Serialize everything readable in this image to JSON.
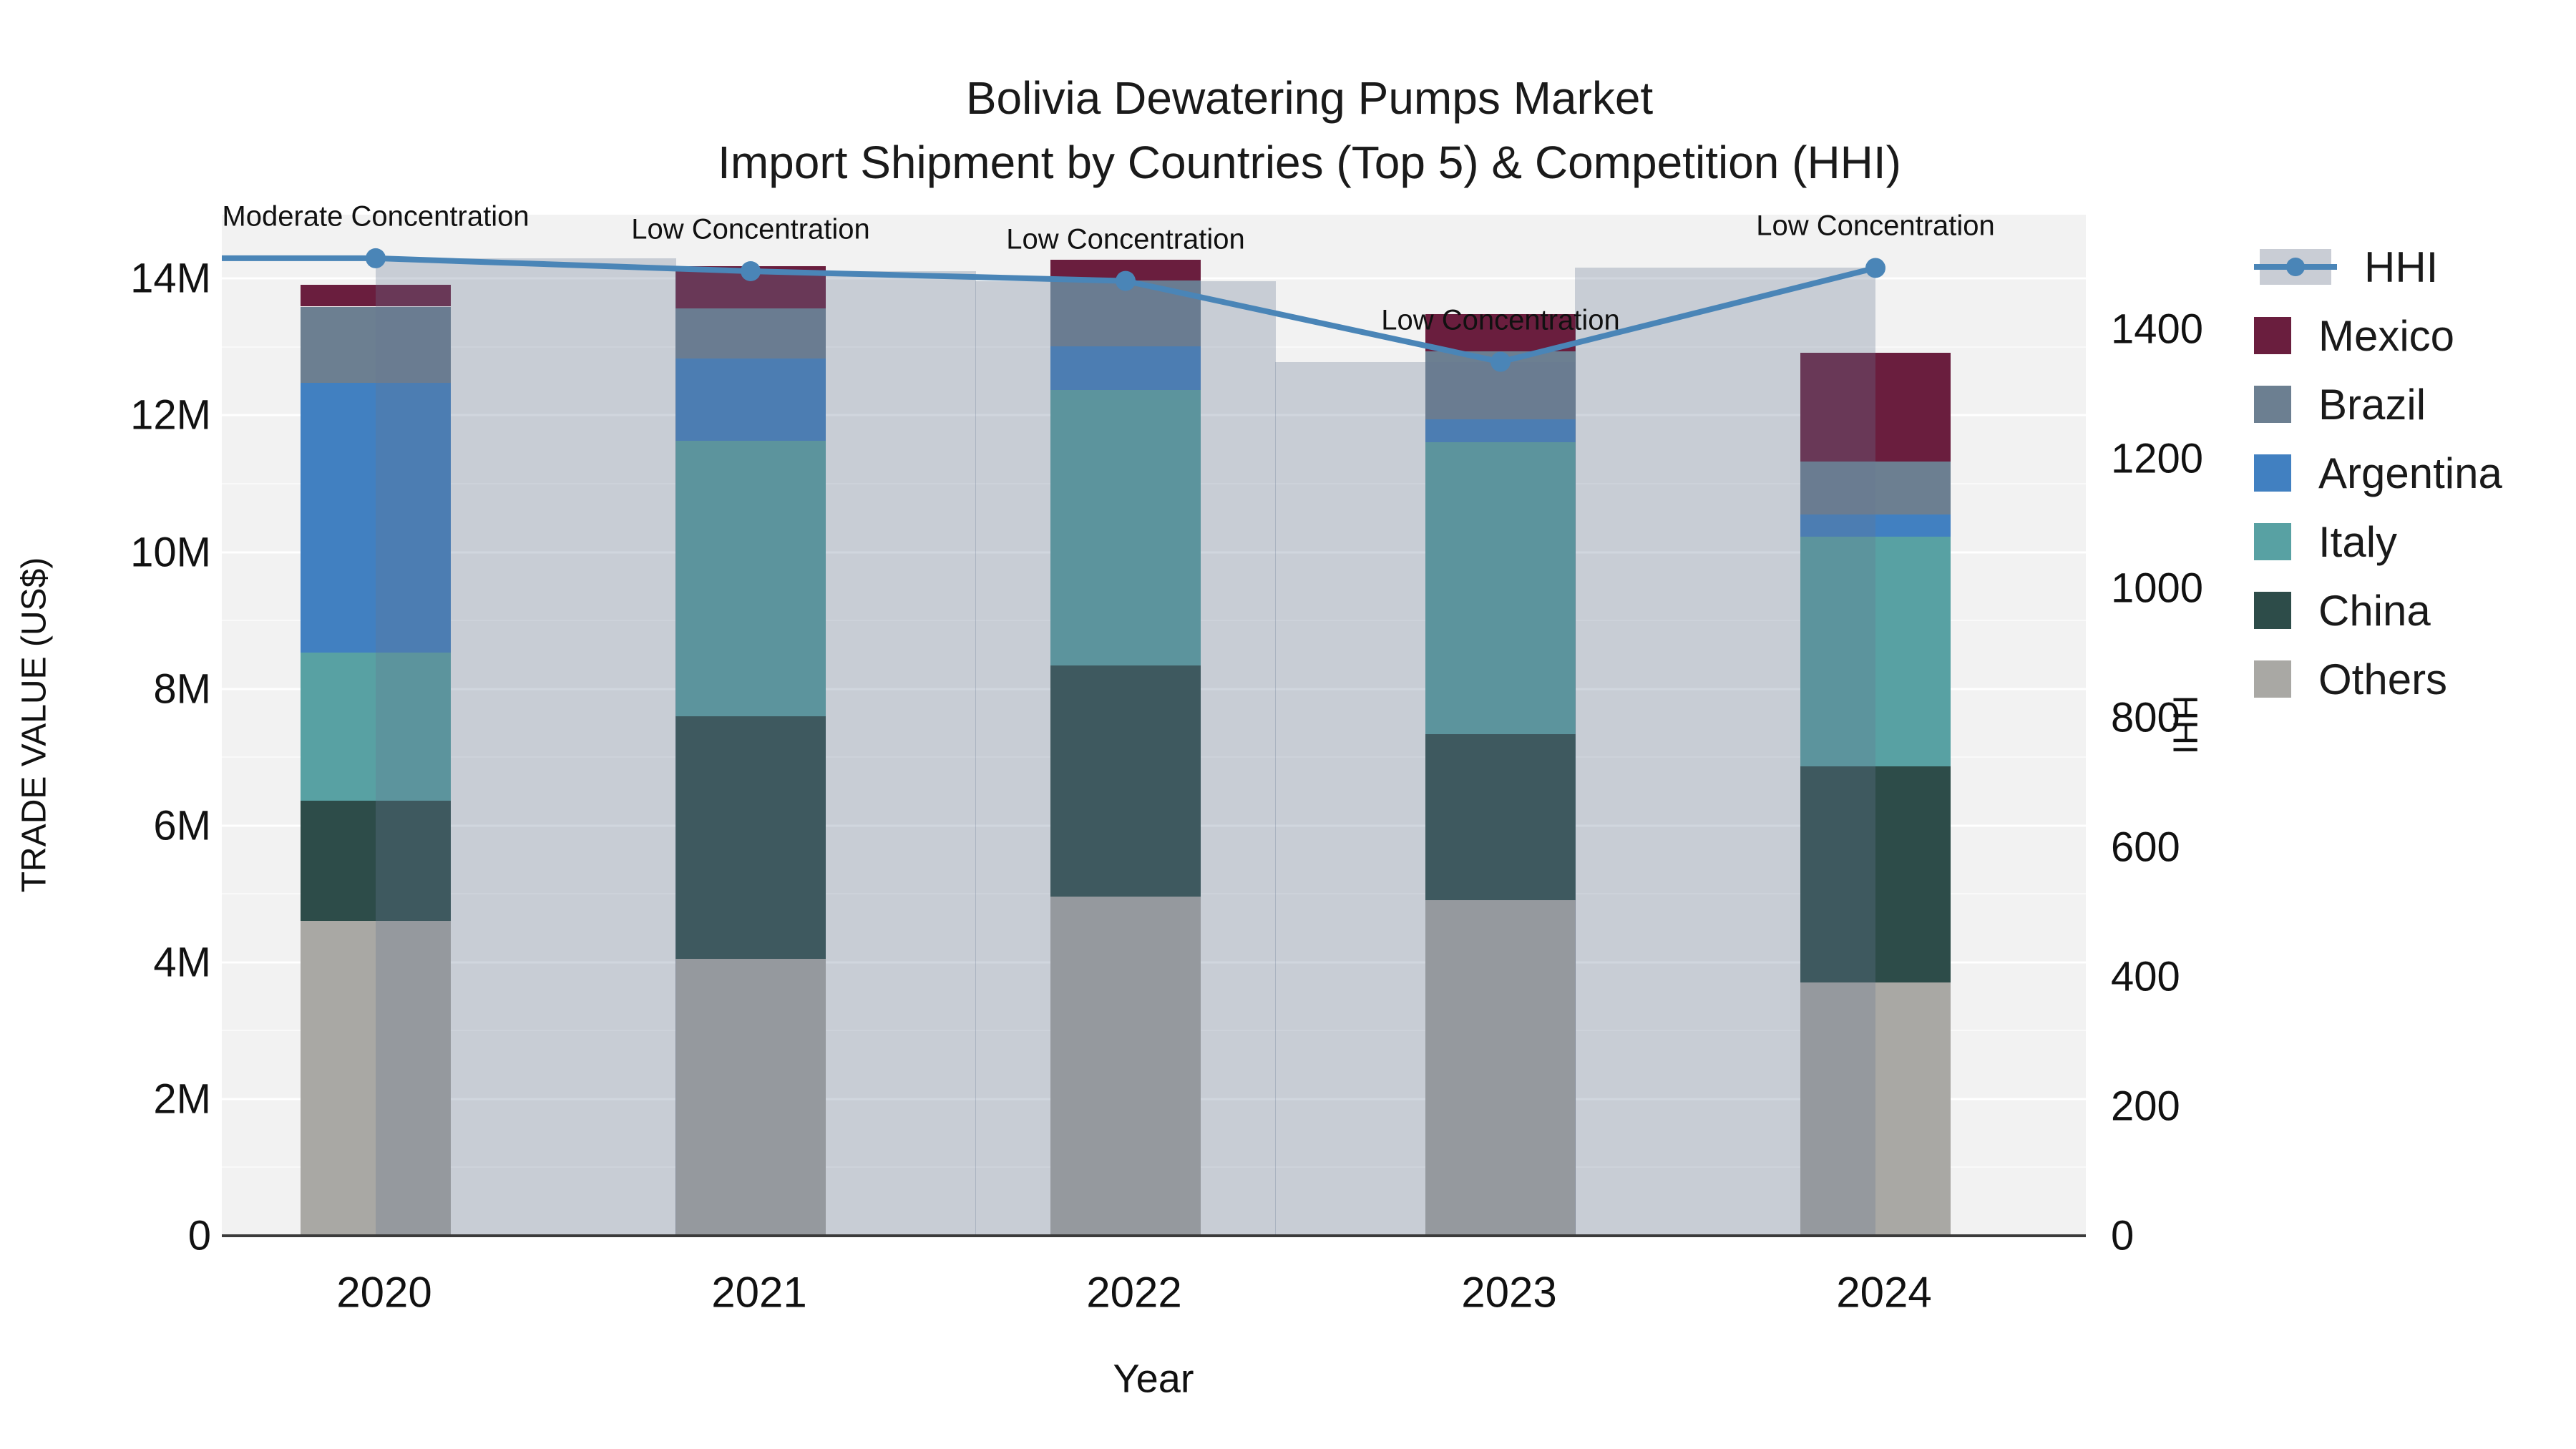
{
  "title": {
    "line1": "Bolivia Dewatering Pumps Market",
    "line2": "Import Shipment by Countries (Top 5) & Competition (HHI)"
  },
  "axes": {
    "y_left": {
      "title": "TRADE VALUE (US$)",
      "tick_labels": [
        "0",
        "2M",
        "4M",
        "6M",
        "8M",
        "10M",
        "12M",
        "14M"
      ],
      "tick_values_millions": [
        0,
        2,
        4,
        6,
        8,
        10,
        12,
        14
      ]
    },
    "y_right": {
      "title": "HHI",
      "tick_labels": [
        "0",
        "200",
        "400",
        "600",
        "800",
        "1000",
        "1200",
        "1400"
      ],
      "tick_values": [
        0,
        200,
        400,
        600,
        800,
        1000,
        1200,
        1400
      ]
    },
    "x": {
      "title": "Year",
      "tick_labels": [
        "2020",
        "2021",
        "2022",
        "2023",
        "2024"
      ]
    }
  },
  "legend": {
    "items": [
      {
        "label": "HHI",
        "kind": "line-marker",
        "color": "#4a85b7",
        "swatch_bg": "#c9cdd5"
      },
      {
        "label": "Mexico",
        "kind": "square",
        "color": "#6a1e3e"
      },
      {
        "label": "Brazil",
        "kind": "square",
        "color": "#6c7f91"
      },
      {
        "label": "Argentina",
        "kind": "square",
        "color": "#4180c1"
      },
      {
        "label": "Italy",
        "kind": "square",
        "color": "#58a1a3"
      },
      {
        "label": "China",
        "kind": "square",
        "color": "#2d4c49"
      },
      {
        "label": "Others",
        "kind": "square",
        "color": "#a9a8a4"
      }
    ]
  },
  "colors": {
    "figure_bg": "#ffffff",
    "plot_bg": "#f2f2f2",
    "gridline": "#ffffff",
    "axis_line": "#3b3b3b",
    "hhi_line": "#4a85b7",
    "hhi_bar_overlay": "rgba(104,118,145,0.30)",
    "text": "#111111"
  },
  "chart_data": {
    "type": "combo: stacked-bar + line",
    "categories": [
      "2020",
      "2021",
      "2022",
      "2023",
      "2024"
    ],
    "value_unit": "Million US$ (left axis), HHI index (right axis)",
    "left_axis_range_millions": [
      0,
      14.93
    ],
    "right_axis_range": [
      0,
      1577
    ],
    "grid": "horizontal white lines every 1M (strong every 2M)",
    "legend_position": "right",
    "stack_order_bottom_to_top": [
      "Others",
      "China",
      "Italy",
      "Argentina",
      "Brazil",
      "Mexico"
    ],
    "series": [
      {
        "name": "Mexico",
        "color": "#6a1e3e",
        "values_millions": [
          0.32,
          0.62,
          0.31,
          0.54,
          1.6
        ]
      },
      {
        "name": "Brazil",
        "color": "#6c7f91",
        "values_millions": [
          1.11,
          0.73,
          0.96,
          1.0,
          0.77
        ]
      },
      {
        "name": "Argentina",
        "color": "#4180c1",
        "values_millions": [
          3.95,
          1.2,
          0.64,
          0.33,
          0.32
        ]
      },
      {
        "name": "Italy",
        "color": "#58a1a3",
        "values_millions": [
          2.17,
          4.03,
          4.03,
          4.27,
          3.36
        ]
      },
      {
        "name": "China",
        "color": "#2d4c49",
        "values_millions": [
          1.75,
          3.55,
          3.38,
          2.43,
          3.17
        ]
      },
      {
        "name": "Others",
        "color": "#a9a8a4",
        "values_millions": [
          4.61,
          4.05,
          4.96,
          4.91,
          3.7
        ]
      }
    ],
    "totals_millions": [
      13.91,
      14.18,
      14.28,
      13.48,
      12.92
    ],
    "hhi_line": {
      "name": "HHI",
      "axis": "right",
      "values": [
        1510,
        1490,
        1475,
        1350,
        1495
      ]
    },
    "annotations": [
      {
        "year": "2020",
        "text": "Moderate Concentration"
      },
      {
        "year": "2021",
        "text": "Low Concentration"
      },
      {
        "year": "2022",
        "text": "Low Concentration"
      },
      {
        "year": "2023",
        "text": "Low Concentration"
      },
      {
        "year": "2024",
        "text": "Low Concentration"
      }
    ]
  }
}
